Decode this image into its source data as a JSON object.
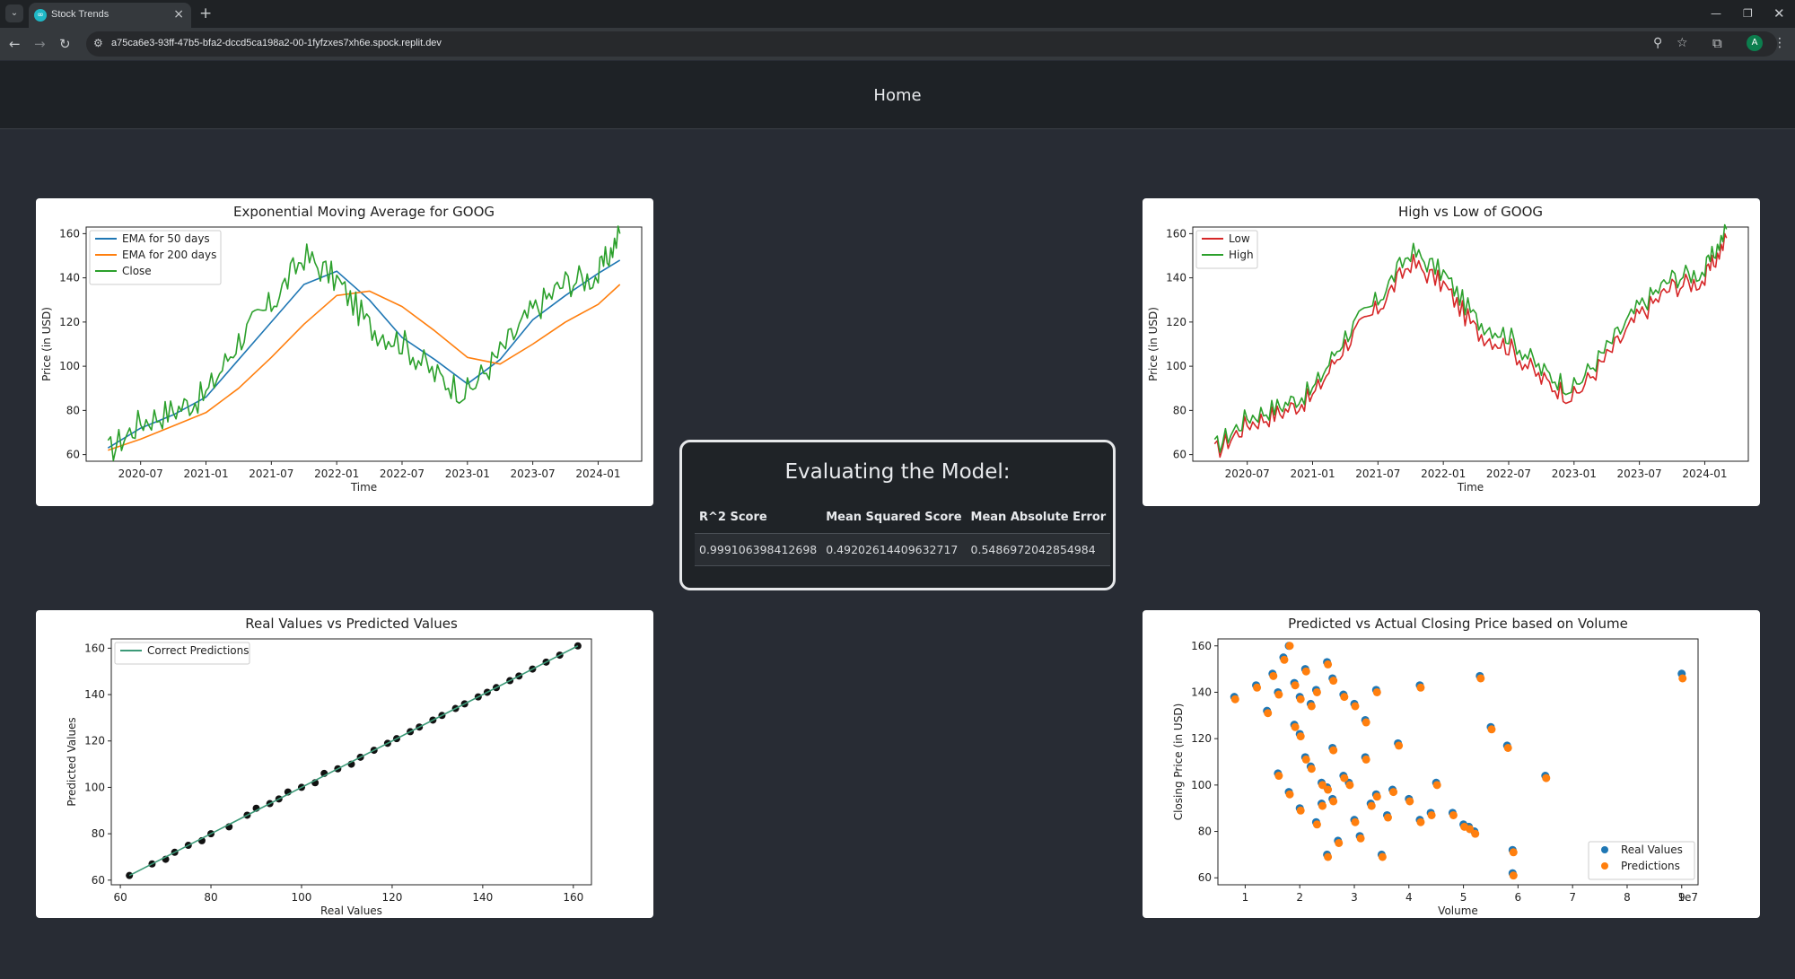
{
  "browser": {
    "tab_title": "Stock Trends",
    "url": "a75ca6e3-93ff-47b5-bfa2-dccd5ca198a2-00-1fyfzxes7xh6e.spock.replit.dev",
    "avatar_letter": "A"
  },
  "header": {
    "home_label": "Home"
  },
  "evaluation": {
    "title": "Evaluating the Model:",
    "columns": [
      "R^2 Score",
      "Mean Squared Score",
      "Mean Absolute Error"
    ],
    "values": [
      "0.999106398412698",
      "0.49202614409632717",
      "0.5486972042854984"
    ]
  },
  "colors": {
    "blue": "#1f77b4",
    "orange": "#ff7f0e",
    "green": "#2ca02c",
    "red": "#d62728",
    "teal": "#3c9a78"
  },
  "chart_data": [
    {
      "type": "line",
      "title": "Exponential Moving Average for GOOG",
      "xlabel": "Time",
      "ylabel": "Price (in USD)",
      "xticks": [
        "2020-07",
        "2021-01",
        "2021-07",
        "2022-01",
        "2022-07",
        "2023-01",
        "2023-07",
        "2024-01"
      ],
      "ylim": [
        57,
        163
      ],
      "yticks": [
        60,
        80,
        100,
        120,
        140,
        160
      ],
      "legend": "top-left",
      "x": [
        "2020-04",
        "2020-07",
        "2020-10",
        "2021-01",
        "2021-04",
        "2021-07",
        "2021-10",
        "2022-01",
        "2022-04",
        "2022-07",
        "2022-10",
        "2023-01",
        "2023-04",
        "2023-07",
        "2023-10",
        "2024-01",
        "2024-03"
      ],
      "series": [
        {
          "name": "EMA for 50 days",
          "color": "#1f77b4",
          "values": [
            63,
            72,
            78,
            86,
            103,
            120,
            137,
            143,
            130,
            113,
            103,
            92,
            103,
            121,
            132,
            142,
            148
          ]
        },
        {
          "name": "EMA for 200 days",
          "color": "#ff7f0e",
          "values": [
            62,
            67,
            73,
            79,
            90,
            104,
            119,
            132,
            134,
            127,
            116,
            104,
            101,
            110,
            120,
            128,
            137
          ]
        },
        {
          "name": "Close",
          "color": "#2ca02c",
          "values": [
            61,
            75,
            80,
            87,
            112,
            128,
            150,
            139,
            118,
            111,
            96,
            88,
            106,
            125,
            138,
            141,
            160
          ]
        }
      ]
    },
    {
      "type": "line",
      "title": "High vs Low of GOOG",
      "xlabel": "Time",
      "ylabel": "Price (in USD)",
      "xticks": [
        "2020-07",
        "2021-01",
        "2021-07",
        "2022-01",
        "2022-07",
        "2023-01",
        "2023-07",
        "2024-01"
      ],
      "ylim": [
        57,
        163
      ],
      "yticks": [
        60,
        80,
        100,
        120,
        140,
        160
      ],
      "legend": "top-left",
      "x": [
        "2020-04",
        "2020-07",
        "2020-10",
        "2021-01",
        "2021-04",
        "2021-07",
        "2021-10",
        "2022-01",
        "2022-04",
        "2022-07",
        "2022-10",
        "2023-01",
        "2023-04",
        "2023-07",
        "2023-10",
        "2024-01",
        "2024-03"
      ],
      "series": [
        {
          "name": "Low",
          "color": "#d62728",
          "values": [
            61,
            74,
            79,
            86,
            110,
            126,
            147,
            137,
            116,
            109,
            94,
            86,
            104,
            123,
            136,
            139,
            158
          ]
        },
        {
          "name": "High",
          "color": "#2ca02c",
          "values": [
            63,
            77,
            82,
            89,
            114,
            130,
            152,
            142,
            121,
            114,
            98,
            90,
            108,
            127,
            140,
            143,
            162
          ]
        }
      ]
    },
    {
      "type": "scatter",
      "title": "Real Values vs Predicted Values",
      "xlabel": "Real Values",
      "ylabel": "Predicted Values",
      "xlim": [
        58,
        164
      ],
      "ylim": [
        58,
        164
      ],
      "xticks": [
        60,
        80,
        100,
        120,
        140,
        160
      ],
      "yticks": [
        60,
        80,
        100,
        120,
        140,
        160
      ],
      "legend": "top-left",
      "series": [
        {
          "name": "Correct Predictions",
          "color": "#3c9a78",
          "line": [
            [
              62,
              62
            ],
            [
              161,
              161
            ]
          ]
        }
      ],
      "points": [
        [
          62,
          62
        ],
        [
          67,
          67
        ],
        [
          70,
          69
        ],
        [
          72,
          72
        ],
        [
          75,
          75
        ],
        [
          78,
          77
        ],
        [
          80,
          80
        ],
        [
          84,
          83
        ],
        [
          88,
          88
        ],
        [
          90,
          91
        ],
        [
          93,
          93
        ],
        [
          95,
          95
        ],
        [
          97,
          98
        ],
        [
          100,
          100
        ],
        [
          103,
          102
        ],
        [
          105,
          106
        ],
        [
          108,
          108
        ],
        [
          111,
          110
        ],
        [
          113,
          113
        ],
        [
          116,
          116
        ],
        [
          119,
          119
        ],
        [
          121,
          121
        ],
        [
          124,
          124
        ],
        [
          126,
          126
        ],
        [
          129,
          129
        ],
        [
          131,
          131
        ],
        [
          134,
          134
        ],
        [
          136,
          136
        ],
        [
          139,
          139
        ],
        [
          141,
          141
        ],
        [
          143,
          143
        ],
        [
          146,
          146
        ],
        [
          148,
          148
        ],
        [
          151,
          151
        ],
        [
          154,
          154
        ],
        [
          157,
          157
        ],
        [
          161,
          161
        ]
      ]
    },
    {
      "type": "scatter",
      "title": "Predicted vs Actual Closing Price based on Volume",
      "xlabel": "Volume",
      "ylabel": "Closing Price (in USD)",
      "offset_label": "1e7",
      "xlim": [
        0.5,
        9.3
      ],
      "ylim": [
        57,
        163
      ],
      "xticks": [
        1,
        2,
        3,
        4,
        5,
        6,
        7,
        8,
        9
      ],
      "yticks": [
        60,
        80,
        100,
        120,
        140,
        160
      ],
      "legend": "lower-right",
      "series": [
        {
          "name": "Real Values",
          "color": "#1f77b4",
          "points": [
            [
              0.8,
              138
            ],
            [
              1.2,
              143
            ],
            [
              1.4,
              132
            ],
            [
              1.5,
              148
            ],
            [
              1.6,
              140
            ],
            [
              1.7,
              155
            ],
            [
              1.8,
              160
            ],
            [
              1.9,
              144
            ],
            [
              2.0,
              138
            ],
            [
              2.1,
              150
            ],
            [
              2.2,
              135
            ],
            [
              2.3,
              141
            ],
            [
              2.5,
              153
            ],
            [
              2.6,
              146
            ],
            [
              2.8,
              139
            ],
            [
              3.0,
              135
            ],
            [
              3.2,
              128
            ],
            [
              3.4,
              141
            ],
            [
              4.2,
              143
            ],
            [
              5.3,
              147
            ],
            [
              9.0,
              148
            ],
            [
              1.6,
              105
            ],
            [
              1.8,
              97
            ],
            [
              2.0,
              122
            ],
            [
              2.2,
              108
            ],
            [
              2.4,
              92
            ],
            [
              2.5,
              99
            ],
            [
              2.6,
              116
            ],
            [
              2.8,
              104
            ],
            [
              3.0,
              85
            ],
            [
              3.2,
              112
            ],
            [
              3.4,
              96
            ],
            [
              3.6,
              87
            ],
            [
              3.8,
              118
            ],
            [
              4.0,
              94
            ],
            [
              4.2,
              85
            ],
            [
              4.5,
              101
            ],
            [
              4.8,
              88
            ],
            [
              5.0,
              83
            ],
            [
              5.2,
              80
            ],
            [
              5.5,
              125
            ],
            [
              5.8,
              117
            ],
            [
              5.9,
              72
            ],
            [
              6.5,
              104
            ],
            [
              2.0,
              90
            ],
            [
              2.3,
              84
            ],
            [
              2.5,
              70
            ],
            [
              2.7,
              76
            ],
            [
              3.1,
              78
            ],
            [
              3.5,
              70
            ],
            [
              1.9,
              126
            ],
            [
              2.1,
              112
            ],
            [
              2.4,
              101
            ],
            [
              2.6,
              94
            ],
            [
              2.9,
              101
            ],
            [
              3.3,
              92
            ],
            [
              3.7,
              98
            ],
            [
              4.4,
              88
            ],
            [
              5.1,
              82
            ],
            [
              5.9,
              62
            ]
          ]
        },
        {
          "name": "Predictions",
          "color": "#ff7f0e",
          "points": [
            [
              0.8,
              137
            ],
            [
              1.2,
              142
            ],
            [
              1.4,
              131
            ],
            [
              1.5,
              147
            ],
            [
              1.6,
              139
            ],
            [
              1.7,
              154
            ],
            [
              1.8,
              160
            ],
            [
              1.9,
              143
            ],
            [
              2.0,
              137
            ],
            [
              2.1,
              149
            ],
            [
              2.2,
              134
            ],
            [
              2.3,
              140
            ],
            [
              2.5,
              152
            ],
            [
              2.6,
              145
            ],
            [
              2.8,
              138
            ],
            [
              3.0,
              134
            ],
            [
              3.2,
              127
            ],
            [
              3.4,
              140
            ],
            [
              4.2,
              142
            ],
            [
              5.3,
              146
            ],
            [
              9.0,
              146
            ],
            [
              1.6,
              104
            ],
            [
              1.8,
              96
            ],
            [
              2.0,
              121
            ],
            [
              2.2,
              107
            ],
            [
              2.4,
              91
            ],
            [
              2.5,
              98
            ],
            [
              2.6,
              115
            ],
            [
              2.8,
              103
            ],
            [
              3.0,
              84
            ],
            [
              3.2,
              111
            ],
            [
              3.4,
              95
            ],
            [
              3.6,
              86
            ],
            [
              3.8,
              117
            ],
            [
              4.0,
              93
            ],
            [
              4.2,
              84
            ],
            [
              4.5,
              100
            ],
            [
              4.8,
              87
            ],
            [
              5.0,
              82
            ],
            [
              5.2,
              79
            ],
            [
              5.5,
              124
            ],
            [
              5.8,
              116
            ],
            [
              5.9,
              71
            ],
            [
              6.5,
              103
            ],
            [
              2.0,
              89
            ],
            [
              2.3,
              83
            ],
            [
              2.5,
              69
            ],
            [
              2.7,
              75
            ],
            [
              3.1,
              77
            ],
            [
              3.5,
              69
            ],
            [
              1.9,
              125
            ],
            [
              2.1,
              111
            ],
            [
              2.4,
              100
            ],
            [
              2.6,
              93
            ],
            [
              2.9,
              100
            ],
            [
              3.3,
              91
            ],
            [
              3.7,
              97
            ],
            [
              4.4,
              87
            ],
            [
              5.1,
              81
            ],
            [
              5.9,
              61
            ]
          ]
        }
      ]
    }
  ]
}
